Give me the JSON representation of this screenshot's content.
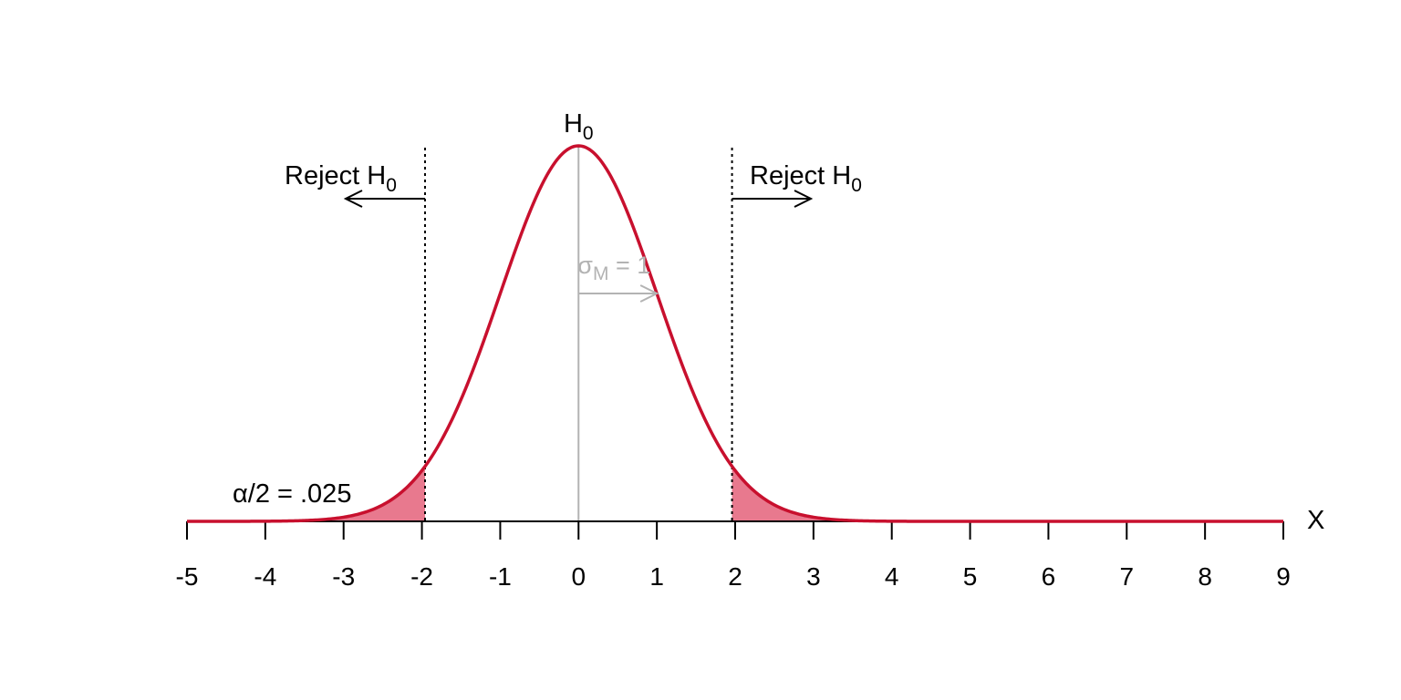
{
  "chart_data": {
    "type": "area",
    "distribution": "normal",
    "mean": 0,
    "sd": 1,
    "x_range": [
      -5,
      9
    ],
    "x_ticks": [
      -5,
      -4,
      -3,
      -2,
      -1,
      0,
      1,
      2,
      3,
      4,
      5,
      6,
      7,
      8,
      9
    ],
    "xlabel": "X",
    "critical_values": [
      -1.96,
      1.96
    ],
    "shaded_tails": true,
    "labels": {
      "h0_main": "H",
      "h0_sub": "0",
      "reject_left": "Reject H",
      "reject_right": "Reject H",
      "reject_sub": "0",
      "sigma_symbol": "σ",
      "sigma_sub": "M",
      "sigma_eq": " = 1",
      "alpha_symbol": "α",
      "alpha_rest": "/2 = .025"
    },
    "colors": {
      "curve": "#c8102e",
      "tail_fill": "#e8798e",
      "mean_line": "#b3b3b3",
      "sigma_arrow": "#b3b3b3",
      "axis": "#000000"
    }
  }
}
